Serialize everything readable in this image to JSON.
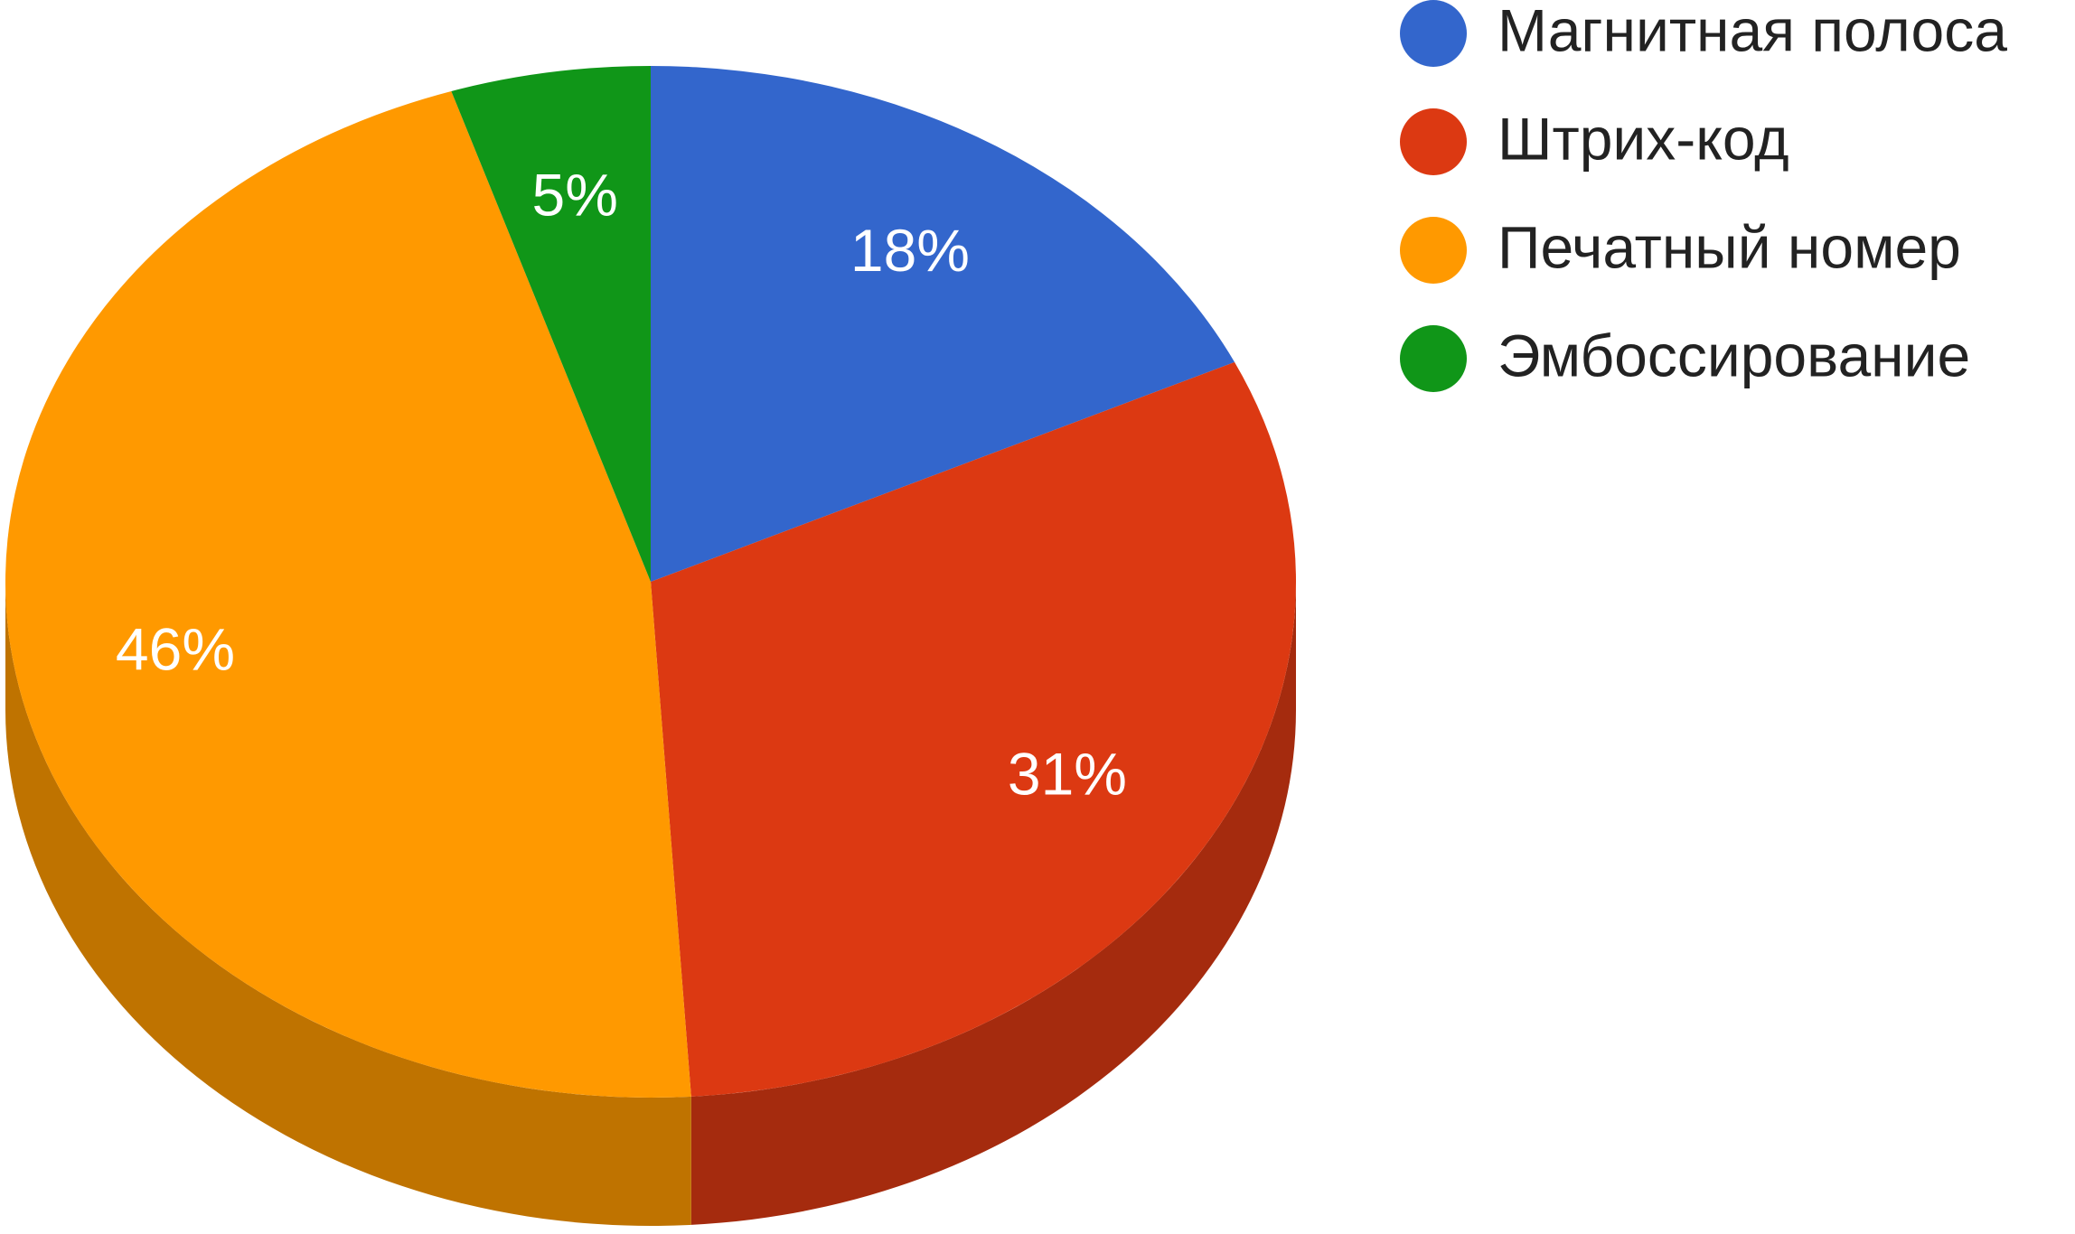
{
  "chart_data": {
    "type": "pie",
    "three_d": true,
    "categories": [
      "Магнитная полоса",
      "Штрих-код",
      "Печатный номер",
      "Эмбоссирование"
    ],
    "values": [
      18,
      31,
      46,
      5
    ],
    "value_labels": [
      "18%",
      "31%",
      "46%",
      "5%"
    ],
    "colors": [
      "#3366cc",
      "#dc3912",
      "#ff9900",
      "#109618"
    ],
    "legend": "right"
  }
}
